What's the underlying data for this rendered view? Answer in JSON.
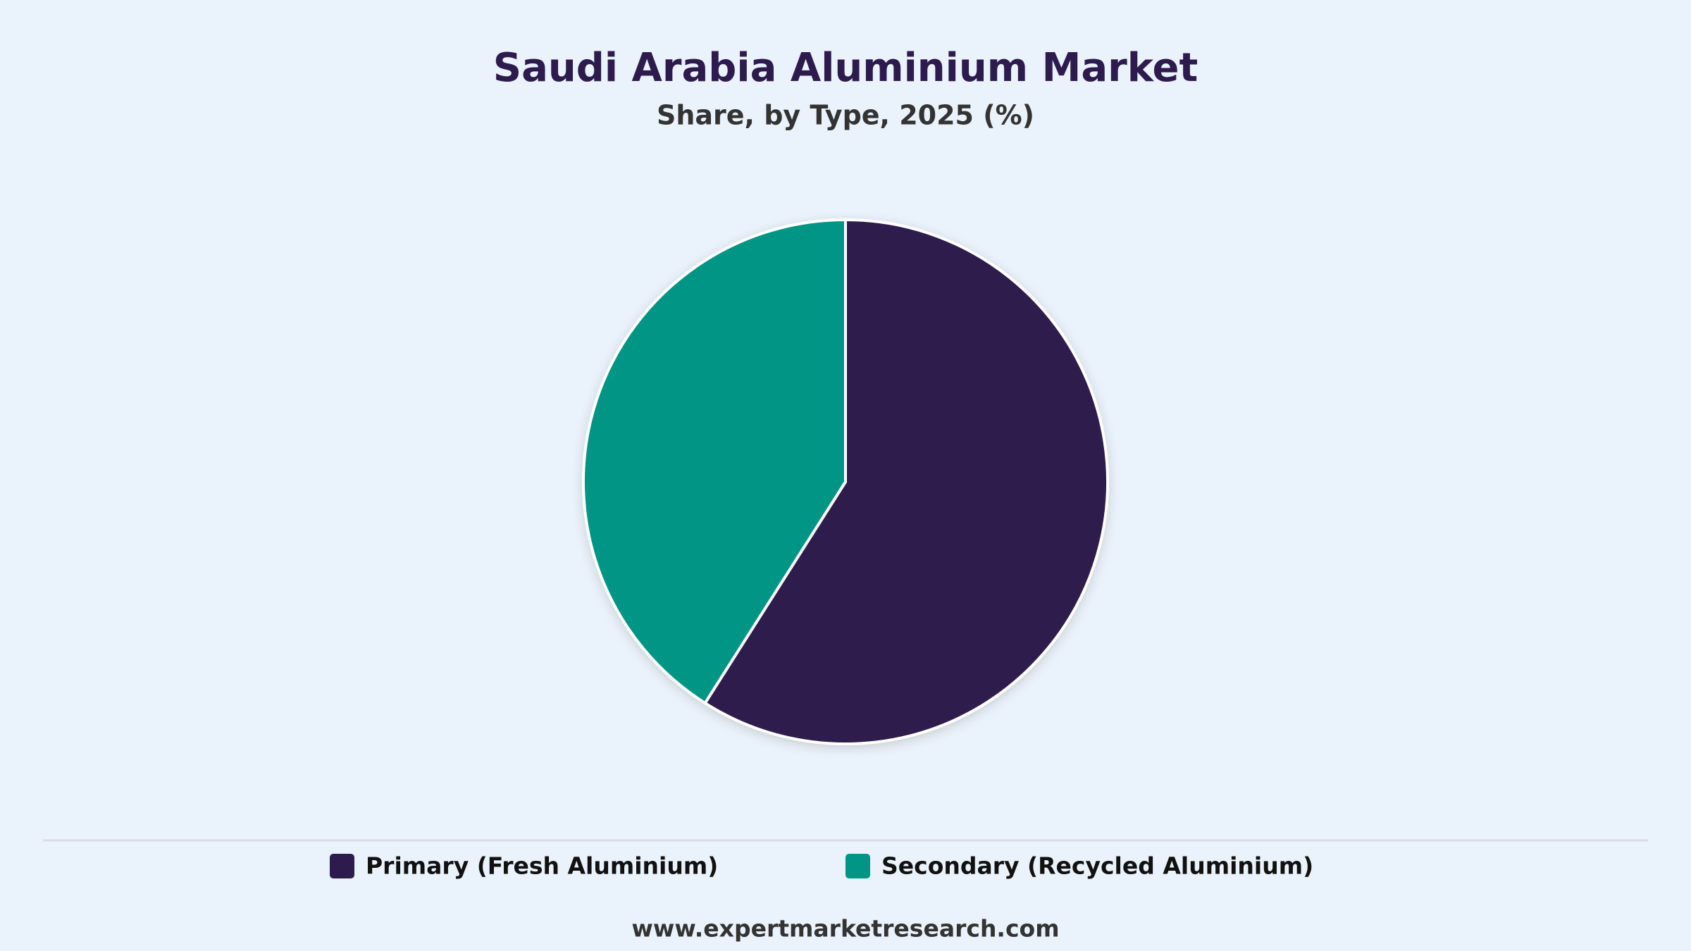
{
  "chart_data": {
    "type": "pie",
    "title": "Saudi Arabia Aluminium Market",
    "subtitle": "Share, by Type, 2025 (%)",
    "categories": [
      "Primary (Fresh Aluminium)",
      "Secondary (Recycled Aluminium)"
    ],
    "values": [
      59,
      41
    ],
    "colors": [
      "#2e1b4e",
      "#009585"
    ],
    "legend": "bottom",
    "source": "www.expertmarketresearch.com"
  }
}
